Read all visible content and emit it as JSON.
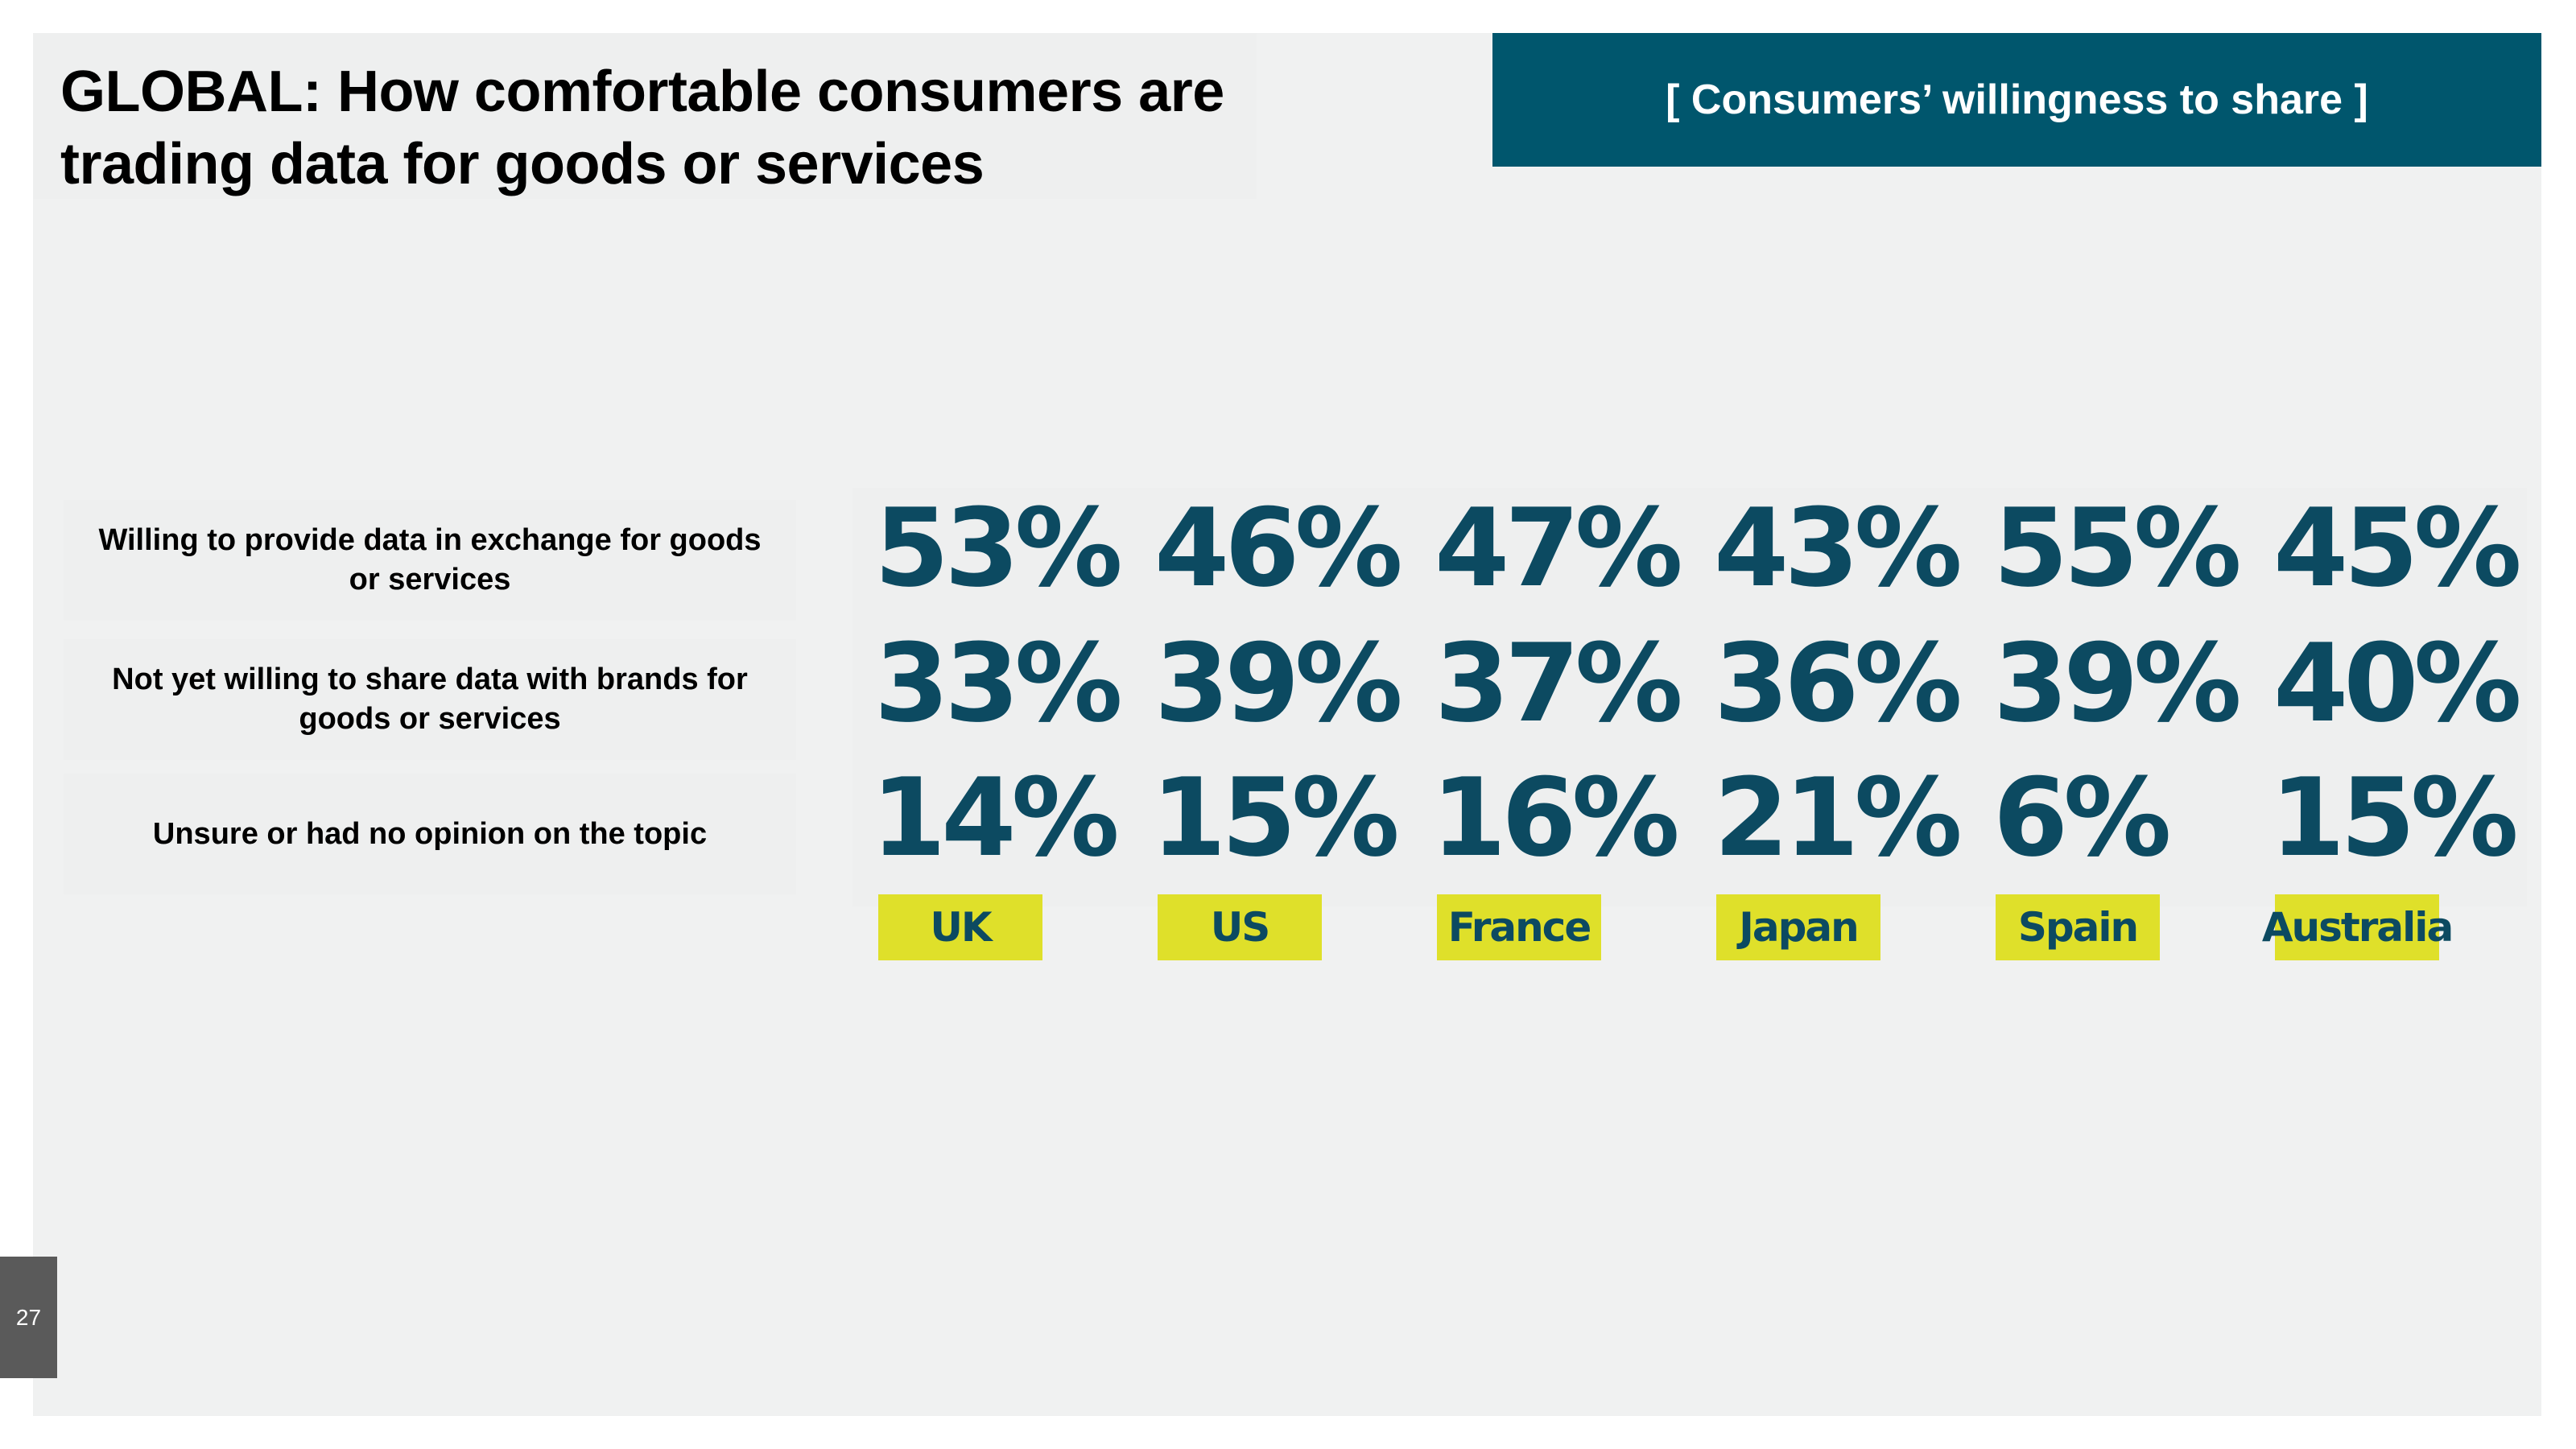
{
  "title": "GLOBAL: How comfortable consumers are trading data for goods or services",
  "tag": "[ Consumers’ willingness to share ]",
  "rows": [
    {
      "label": "Willing to provide data in exchange for goods or services",
      "values": [
        "53%",
        "46%",
        "47%",
        "43%",
        "55%",
        "45%"
      ]
    },
    {
      "label": "Not yet willing to share data with brands for goods or services",
      "values": [
        "33%",
        "39%",
        "37%",
        "36%",
        "39%",
        "40%"
      ]
    },
    {
      "label": "Unsure or had no opinion on the topic",
      "values": [
        "14%",
        "15%",
        "16%",
        "21%",
        "6%",
        "15%"
      ]
    }
  ],
  "countries": [
    "UK",
    "US",
    "France",
    "Japan",
    "Spain",
    "Australia"
  ],
  "chart_data": {
    "type": "table",
    "title": "GLOBAL: How comfortable consumers are trading data for goods or services",
    "unit": "%",
    "columns": [
      "UK",
      "US",
      "France",
      "Japan",
      "Spain",
      "Australia"
    ],
    "series": [
      {
        "name": "Willing to provide data in exchange for goods or services",
        "values": [
          53,
          46,
          47,
          43,
          55,
          45
        ]
      },
      {
        "name": "Not yet willing to share data with brands for goods or services",
        "values": [
          33,
          39,
          37,
          36,
          39,
          40
        ]
      },
      {
        "name": "Unsure or had no opinion on the topic",
        "values": [
          14,
          15,
          16,
          21,
          6,
          15
        ]
      }
    ]
  },
  "page_number": "27",
  "colors": {
    "accent": "#00566d",
    "value_text": "#0c4a61",
    "country_badge": "#dfe02a",
    "background": "#f0f1f1"
  }
}
